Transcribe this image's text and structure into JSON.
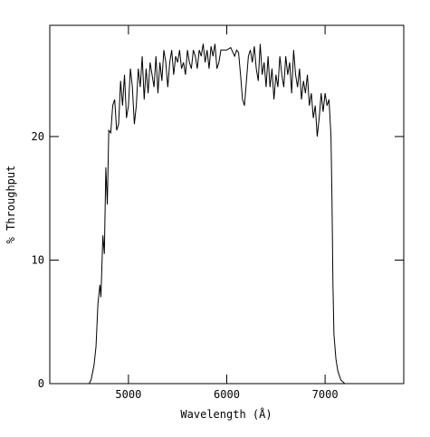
{
  "chart_data": {
    "type": "line",
    "x_label": "Wavelength (Å)",
    "y_label": "% Throughput",
    "color": "#000000",
    "xlim": [
      4200,
      7800
    ],
    "ylim": [
      0,
      29
    ],
    "xticks": [
      5000,
      6000,
      7000
    ],
    "yticks": [
      0,
      10,
      20
    ],
    "x": [
      4600,
      4620,
      4650,
      4670,
      4690,
      4710,
      4720,
      4740,
      4755,
      4770,
      4785,
      4800,
      4820,
      4840,
      4860,
      4880,
      4900,
      4920,
      4940,
      4960,
      4980,
      5000,
      5020,
      5040,
      5060,
      5080,
      5100,
      5120,
      5140,
      5160,
      5180,
      5200,
      5220,
      5240,
      5260,
      5280,
      5300,
      5320,
      5340,
      5360,
      5380,
      5400,
      5420,
      5440,
      5460,
      5480,
      5500,
      5520,
      5540,
      5560,
      5580,
      5600,
      5620,
      5640,
      5660,
      5680,
      5700,
      5720,
      5740,
      5760,
      5780,
      5800,
      5820,
      5840,
      5860,
      5880,
      5900,
      5920,
      5940,
      5960,
      6000,
      6040,
      6080,
      6100,
      6120,
      6140,
      6160,
      6180,
      6200,
      6220,
      6240,
      6260,
      6280,
      6300,
      6320,
      6340,
      6360,
      6380,
      6400,
      6420,
      6440,
      6460,
      6480,
      6500,
      6520,
      6540,
      6560,
      6580,
      6600,
      6620,
      6640,
      6660,
      6680,
      6700,
      6720,
      6740,
      6760,
      6780,
      6800,
      6820,
      6840,
      6860,
      6880,
      6900,
      6920,
      6940,
      6960,
      6980,
      7000,
      7020,
      7040,
      7060,
      7070,
      7080,
      7090,
      7110,
      7130,
      7160,
      7200
    ],
    "values": [
      0,
      0.3,
      1.5,
      3,
      6.5,
      8,
      7,
      12,
      10.5,
      17.5,
      14.5,
      20.5,
      20.3,
      22.5,
      23,
      20.5,
      21,
      24.5,
      22.5,
      25,
      21.5,
      22.5,
      25.5,
      24,
      21,
      22.5,
      25.5,
      24,
      26.5,
      23,
      25.5,
      23.5,
      26,
      25,
      24,
      26.5,
      23.5,
      26,
      24.5,
      27,
      26,
      24,
      26,
      27,
      25,
      26.5,
      26,
      27,
      25.5,
      26,
      25,
      27,
      26,
      25.5,
      27,
      26.5,
      25.5,
      27,
      26.5,
      27.5,
      26,
      27,
      25.5,
      27.3,
      26.5,
      27.5,
      25.5,
      26,
      27,
      27,
      27,
      27.2,
      26.5,
      27,
      26.8,
      25,
      23,
      22.5,
      24.5,
      26.5,
      27,
      26,
      27.3,
      25.5,
      24.5,
      27.5,
      25,
      26,
      24,
      26.5,
      24,
      25.5,
      23,
      25,
      24,
      26.5,
      25,
      24,
      26.5,
      25,
      26,
      23.5,
      27,
      25,
      24,
      25.5,
      23,
      24.5,
      23.5,
      25,
      22.5,
      23.5,
      21.5,
      22.5,
      20,
      21.5,
      23.5,
      22,
      23.5,
      22.5,
      23,
      20,
      15,
      8,
      4,
      2,
      1,
      0.3,
      0
    ]
  }
}
